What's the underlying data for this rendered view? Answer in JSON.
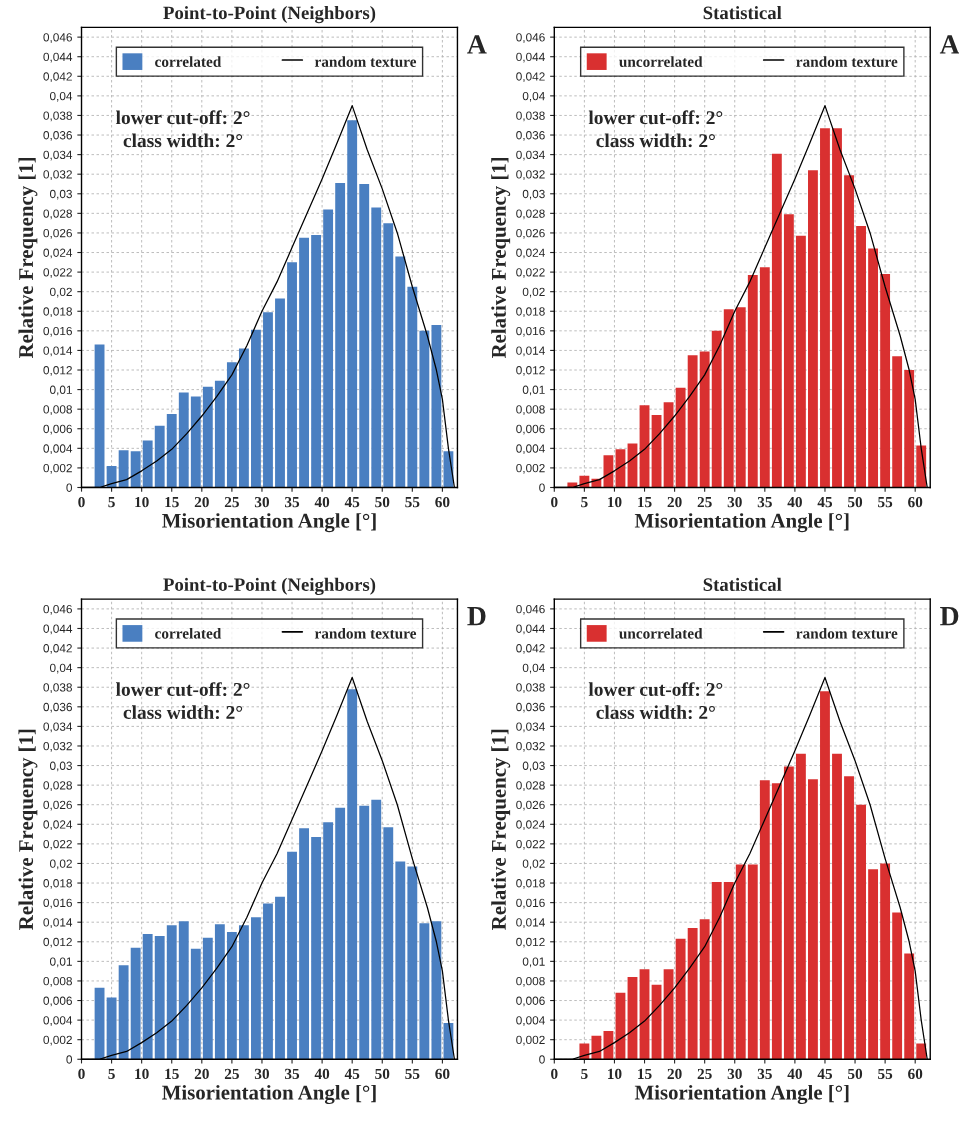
{
  "chart_data": [
    {
      "type": "histogram",
      "title": "Point-to-Point (Neighbors)",
      "xlabel": "Misorientation Angle [°]",
      "ylabel": "Relative Frequency [1]",
      "annotations": [
        "lower cut-off: 2°",
        "class width: 2°",
        "A"
      ],
      "bins": [
        2,
        4,
        6,
        8,
        10,
        12,
        14,
        16,
        18,
        20,
        22,
        24,
        26,
        28,
        30,
        32,
        34,
        36,
        38,
        40,
        42,
        44,
        46,
        48,
        50,
        52,
        54,
        56,
        58,
        60,
        62
      ],
      "series": [
        {
          "name": "correlated",
          "color": "#4a7fc1",
          "values": [
            0.0146,
            0.0022,
            0.0038,
            0.0037,
            0.0048,
            0.0063,
            0.0075,
            0.0097,
            0.0093,
            0.0103,
            0.0109,
            0.0128,
            0.0142,
            0.0161,
            0.0179,
            0.0193,
            0.023,
            0.0255,
            0.0258,
            0.0284,
            0.0311,
            0.0375,
            0.031,
            0.0286,
            0.027,
            0.0236,
            0.0205,
            0.016,
            0.0166,
            0.0037
          ]
        },
        {
          "type": "line",
          "name": "random texture",
          "color": "#000000",
          "x": [
            0,
            2,
            3,
            5,
            7.5,
            10,
            12.5,
            15,
            17.5,
            20,
            22.5,
            25,
            27.5,
            30,
            32.5,
            35,
            37.5,
            40,
            42.5,
            45,
            47.5,
            50,
            52.5,
            55,
            57.5,
            59,
            60,
            61,
            62
          ],
          "values": [
            0,
            0,
            0,
            0.0004,
            0.0008,
            0.0017,
            0.0027,
            0.0039,
            0.0055,
            0.0073,
            0.0093,
            0.0115,
            0.0145,
            0.018,
            0.021,
            0.0245,
            0.028,
            0.0315,
            0.0352,
            0.039,
            0.0345,
            0.0305,
            0.026,
            0.0205,
            0.0155,
            0.012,
            0.009,
            0.004,
            0
          ]
        }
      ],
      "xlim": [
        0,
        62.5
      ],
      "ylim": [
        0,
        0.047
      ],
      "xticks": [
        0,
        5,
        10,
        15,
        20,
        25,
        30,
        35,
        40,
        45,
        50,
        55,
        60
      ],
      "yticks": [
        0,
        {
          "value": 0.002,
          "label": "0,002"
        },
        {
          "value": 0.004,
          "label": "0,004"
        },
        {
          "value": 0.006,
          "label": "0,006"
        },
        {
          "value": 0.008,
          "label": "0,008"
        },
        {
          "value": 0.01,
          "label": "0,01"
        },
        {
          "value": 0.012,
          "label": "0,012"
        },
        {
          "value": 0.014,
          "label": "0,014"
        },
        {
          "value": 0.016,
          "label": "0,016"
        },
        {
          "value": 0.018,
          "label": "0,018"
        },
        {
          "value": 0.02,
          "label": "0,02"
        },
        {
          "value": 0.022,
          "label": "0,022"
        },
        {
          "value": 0.024,
          "label": "0,024"
        },
        {
          "value": 0.026,
          "label": "0,026"
        },
        {
          "value": 0.028,
          "label": "0,028"
        },
        {
          "value": 0.03,
          "label": "0,03"
        },
        {
          "value": 0.032,
          "label": "0,032"
        },
        {
          "value": 0.034,
          "label": "0,034"
        },
        {
          "value": 0.036,
          "label": "0,036"
        },
        {
          "value": 0.038,
          "label": "0,038"
        },
        {
          "value": 0.04,
          "label": "0,04"
        },
        {
          "value": 0.042,
          "label": "0,042"
        },
        {
          "value": 0.044,
          "label": "0,044"
        },
        {
          "value": 0.046,
          "label": "0,046"
        }
      ],
      "grid": true,
      "legend": "top"
    },
    {
      "type": "histogram",
      "title": "Statistical",
      "xlabel": "Misorientation Angle [°]",
      "ylabel": "Relative Frequency [1]",
      "annotations": [
        "lower cut-off: 2°",
        "class width: 2°",
        "A"
      ],
      "bins": [
        2,
        4,
        6,
        8,
        10,
        12,
        14,
        16,
        18,
        20,
        22,
        24,
        26,
        28,
        30,
        32,
        34,
        36,
        38,
        40,
        42,
        44,
        46,
        48,
        50,
        52,
        54,
        56,
        58,
        60,
        62
      ],
      "series": [
        {
          "name": "uncorrelated",
          "color": "#d93030",
          "values": [
            0.0005,
            0.0012,
            0.0009,
            0.0033,
            0.0039,
            0.0045,
            0.0084,
            0.0074,
            0.0087,
            0.0102,
            0.0135,
            0.0139,
            0.016,
            0.0182,
            0.0184,
            0.0217,
            0.0225,
            0.0341,
            0.0279,
            0.0257,
            0.0324,
            0.0367,
            0.0367,
            0.0319,
            0.0267,
            0.0244,
            0.0218,
            0.0134,
            0.012,
            0.0043
          ]
        },
        {
          "type": "line",
          "name": "random texture",
          "color": "#000000",
          "x": [
            0,
            2,
            3,
            5,
            7.5,
            10,
            12.5,
            15,
            17.5,
            20,
            22.5,
            25,
            27.5,
            30,
            32.5,
            35,
            37.5,
            40,
            42.5,
            45,
            47.5,
            50,
            52.5,
            55,
            57.5,
            59,
            60,
            61,
            62
          ],
          "values": [
            0,
            0,
            0,
            0.0004,
            0.0008,
            0.0017,
            0.0027,
            0.0039,
            0.0055,
            0.0073,
            0.0093,
            0.0115,
            0.0145,
            0.018,
            0.021,
            0.0245,
            0.028,
            0.0315,
            0.0352,
            0.039,
            0.0345,
            0.0305,
            0.026,
            0.0205,
            0.0155,
            0.012,
            0.009,
            0.004,
            0
          ]
        }
      ],
      "xlim": [
        0,
        62.5
      ],
      "ylim": [
        0,
        0.047
      ],
      "xticks": [
        0,
        5,
        10,
        15,
        20,
        25,
        30,
        35,
        40,
        45,
        50,
        55,
        60
      ],
      "yticks": [
        0,
        {
          "value": 0.002,
          "label": "0,002"
        },
        {
          "value": 0.004,
          "label": "0,004"
        },
        {
          "value": 0.006,
          "label": "0,006"
        },
        {
          "value": 0.008,
          "label": "0,008"
        },
        {
          "value": 0.01,
          "label": "0,01"
        },
        {
          "value": 0.012,
          "label": "0,012"
        },
        {
          "value": 0.014,
          "label": "0,014"
        },
        {
          "value": 0.016,
          "label": "0,016"
        },
        {
          "value": 0.018,
          "label": "0,018"
        },
        {
          "value": 0.02,
          "label": "0,02"
        },
        {
          "value": 0.022,
          "label": "0,022"
        },
        {
          "value": 0.024,
          "label": "0,024"
        },
        {
          "value": 0.026,
          "label": "0,026"
        },
        {
          "value": 0.028,
          "label": "0,028"
        },
        {
          "value": 0.03,
          "label": "0,03"
        },
        {
          "value": 0.032,
          "label": "0,032"
        },
        {
          "value": 0.034,
          "label": "0,034"
        },
        {
          "value": 0.036,
          "label": "0,036"
        },
        {
          "value": 0.038,
          "label": "0,038"
        },
        {
          "value": 0.04,
          "label": "0,04"
        },
        {
          "value": 0.042,
          "label": "0,042"
        },
        {
          "value": 0.044,
          "label": "0,044"
        },
        {
          "value": 0.046,
          "label": "0,046"
        }
      ],
      "grid": true,
      "legend": "top"
    },
    {
      "type": "histogram",
      "title": "Point-to-Point (Neighbors)",
      "xlabel": "Misorientation Angle [°]",
      "ylabel": "Relative Frequency [1]",
      "annotations": [
        "lower cut-off: 2°",
        "class width: 2°",
        "D"
      ],
      "bins": [
        2,
        4,
        6,
        8,
        10,
        12,
        14,
        16,
        18,
        20,
        22,
        24,
        26,
        28,
        30,
        32,
        34,
        36,
        38,
        40,
        42,
        44,
        46,
        48,
        50,
        52,
        54,
        56,
        58,
        60,
        62
      ],
      "series": [
        {
          "name": "correlated",
          "color": "#4a7fc1",
          "values": [
            0.0073,
            0.0063,
            0.0096,
            0.0114,
            0.0128,
            0.0126,
            0.0137,
            0.0141,
            0.0113,
            0.0124,
            0.0138,
            0.013,
            0.0137,
            0.0145,
            0.0159,
            0.0166,
            0.0212,
            0.0236,
            0.0227,
            0.0242,
            0.0257,
            0.0378,
            0.0259,
            0.0265,
            0.0237,
            0.0202,
            0.0197,
            0.0139,
            0.0141,
            0.0037
          ]
        },
        {
          "type": "line",
          "name": "random texture",
          "color": "#000000",
          "x": [
            0,
            2,
            3,
            5,
            7.5,
            10,
            12.5,
            15,
            17.5,
            20,
            22.5,
            25,
            27.5,
            30,
            32.5,
            35,
            37.5,
            40,
            42.5,
            45,
            47.5,
            50,
            52.5,
            55,
            57.5,
            59,
            60,
            61,
            62
          ],
          "values": [
            0,
            0,
            0,
            0.0004,
            0.0008,
            0.0017,
            0.0027,
            0.0039,
            0.0055,
            0.0073,
            0.0093,
            0.0115,
            0.0145,
            0.018,
            0.021,
            0.0245,
            0.028,
            0.0315,
            0.0352,
            0.039,
            0.0345,
            0.0305,
            0.026,
            0.0205,
            0.0155,
            0.012,
            0.009,
            0.004,
            0
          ]
        }
      ],
      "xlim": [
        0,
        62.5
      ],
      "ylim": [
        0,
        0.047
      ],
      "xticks": [
        0,
        5,
        10,
        15,
        20,
        25,
        30,
        35,
        40,
        45,
        50,
        55,
        60
      ],
      "yticks": [
        0,
        {
          "value": 0.002,
          "label": "0,002"
        },
        {
          "value": 0.004,
          "label": "0,004"
        },
        {
          "value": 0.006,
          "label": "0,006"
        },
        {
          "value": 0.008,
          "label": "0,008"
        },
        {
          "value": 0.01,
          "label": "0,01"
        },
        {
          "value": 0.012,
          "label": "0,012"
        },
        {
          "value": 0.014,
          "label": "0,014"
        },
        {
          "value": 0.016,
          "label": "0,016"
        },
        {
          "value": 0.018,
          "label": "0,018"
        },
        {
          "value": 0.02,
          "label": "0,02"
        },
        {
          "value": 0.022,
          "label": "0,022"
        },
        {
          "value": 0.024,
          "label": "0,024"
        },
        {
          "value": 0.026,
          "label": "0,026"
        },
        {
          "value": 0.028,
          "label": "0,028"
        },
        {
          "value": 0.03,
          "label": "0,03"
        },
        {
          "value": 0.032,
          "label": "0,032"
        },
        {
          "value": 0.034,
          "label": "0,034"
        },
        {
          "value": 0.036,
          "label": "0,036"
        },
        {
          "value": 0.038,
          "label": "0,038"
        },
        {
          "value": 0.04,
          "label": "0,04"
        },
        {
          "value": 0.042,
          "label": "0,042"
        },
        {
          "value": 0.044,
          "label": "0,044"
        },
        {
          "value": 0.046,
          "label": "0,046"
        }
      ],
      "grid": true,
      "legend": "top"
    },
    {
      "type": "histogram",
      "title": "Statistical",
      "xlabel": "Misorientation Angle [°]",
      "ylabel": "Relative Frequency [1]",
      "annotations": [
        "lower cut-off: 2°",
        "class width: 2°",
        "D"
      ],
      "bins": [
        2,
        4,
        6,
        8,
        10,
        12,
        14,
        16,
        18,
        20,
        22,
        24,
        26,
        28,
        30,
        32,
        34,
        36,
        38,
        40,
        42,
        44,
        46,
        48,
        50,
        52,
        54,
        56,
        58,
        60,
        62
      ],
      "series": [
        {
          "name": "uncorrelated",
          "color": "#d93030",
          "values": [
            0,
            0.0016,
            0.0024,
            0.0029,
            0.0068,
            0.0084,
            0.0092,
            0.0076,
            0.0092,
            0.0123,
            0.0134,
            0.0143,
            0.0181,
            0.0181,
            0.0199,
            0.0199,
            0.0285,
            0.0282,
            0.0299,
            0.0312,
            0.0286,
            0.0376,
            0.0312,
            0.0289,
            0.026,
            0.0194,
            0.02,
            0.015,
            0.0108,
            0.0016
          ]
        },
        {
          "type": "line",
          "name": "random texture",
          "color": "#000000",
          "x": [
            0,
            2,
            3,
            5,
            7.5,
            10,
            12.5,
            15,
            17.5,
            20,
            22.5,
            25,
            27.5,
            30,
            32.5,
            35,
            37.5,
            40,
            42.5,
            45,
            47.5,
            50,
            52.5,
            55,
            57.5,
            59,
            60,
            61,
            62
          ],
          "values": [
            0,
            0,
            0,
            0.0004,
            0.0008,
            0.0017,
            0.0027,
            0.0039,
            0.0055,
            0.0073,
            0.0093,
            0.0115,
            0.0145,
            0.018,
            0.021,
            0.0245,
            0.028,
            0.0315,
            0.0352,
            0.039,
            0.0345,
            0.0305,
            0.026,
            0.0205,
            0.0155,
            0.012,
            0.009,
            0.004,
            0
          ]
        }
      ],
      "xlim": [
        0,
        62.5
      ],
      "ylim": [
        0,
        0.047
      ],
      "xticks": [
        0,
        5,
        10,
        15,
        20,
        25,
        30,
        35,
        40,
        45,
        50,
        55,
        60
      ],
      "yticks": [
        0,
        {
          "value": 0.002,
          "label": "0,002"
        },
        {
          "value": 0.004,
          "label": "0,004"
        },
        {
          "value": 0.006,
          "label": "0,006"
        },
        {
          "value": 0.008,
          "label": "0,008"
        },
        {
          "value": 0.01,
          "label": "0,01"
        },
        {
          "value": 0.012,
          "label": "0,012"
        },
        {
          "value": 0.014,
          "label": "0,014"
        },
        {
          "value": 0.016,
          "label": "0,016"
        },
        {
          "value": 0.018,
          "label": "0,018"
        },
        {
          "value": 0.02,
          "label": "0,02"
        },
        {
          "value": 0.022,
          "label": "0,022"
        },
        {
          "value": 0.024,
          "label": "0,024"
        },
        {
          "value": 0.026,
          "label": "0,026"
        },
        {
          "value": 0.028,
          "label": "0,028"
        },
        {
          "value": 0.03,
          "label": "0,03"
        },
        {
          "value": 0.032,
          "label": "0,032"
        },
        {
          "value": 0.034,
          "label": "0,034"
        },
        {
          "value": 0.036,
          "label": "0,036"
        },
        {
          "value": 0.038,
          "label": "0,038"
        },
        {
          "value": 0.04,
          "label": "0,04"
        },
        {
          "value": 0.042,
          "label": "0,042"
        },
        {
          "value": 0.044,
          "label": "0,044"
        },
        {
          "value": 0.046,
          "label": "0,046"
        }
      ],
      "grid": true,
      "legend": "top"
    }
  ]
}
